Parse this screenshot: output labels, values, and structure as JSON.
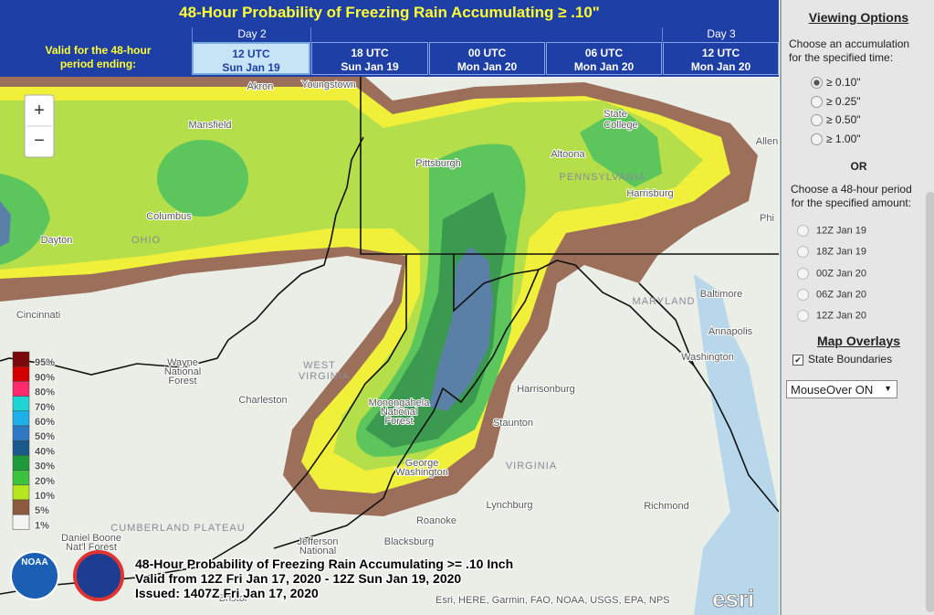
{
  "header": {
    "title": "48-Hour Probability of Freezing Rain Accumulating ≥ .10\"",
    "valid_label": [
      "Valid for the 48-hour",
      "period ending:"
    ],
    "days": [
      "Day 2",
      "Day 3"
    ],
    "tabs": [
      [
        "12 UTC",
        "Sun Jan 19"
      ],
      [
        "18 UTC",
        "Sun Jan 19"
      ],
      [
        "00 UTC",
        "Mon Jan 20"
      ],
      [
        "06 UTC",
        "Mon Jan 20"
      ],
      [
        "12 UTC",
        "Mon Jan 20"
      ]
    ]
  },
  "map": {
    "zoom": [
      "+",
      "−"
    ],
    "labels": [
      "Akron",
      "Youngstown",
      "Mansfield",
      "Pittsburgh",
      "State",
      "College",
      "Altoona",
      "PENNSYLVANIA",
      "Harrisburg",
      "Columbus",
      "Dayton",
      "OHIO",
      "Cincinnati",
      "WEST",
      "VIRGINIA",
      "Charleston",
      "Wayne",
      "National",
      "Forest",
      "MARYLAND",
      "Baltimore",
      "Annapolis",
      "Washington",
      "Harrisonburg",
      "Staunton",
      "VIRGINIA",
      "Lynchburg",
      "Roanoke",
      "Blacksburg",
      "Richmond",
      "CUMBERLAND PLATEAU",
      "Daniel Boone",
      "Nat'l Forest",
      "Jefferson",
      "National",
      "Monongahela",
      "National",
      "Forest",
      "George",
      "Washington",
      "Allen",
      "Phi",
      "Bristol"
    ],
    "legend": [
      {
        "label": "95%",
        "color": "#7a0a0a"
      },
      {
        "label": "90%",
        "color": "#d40000"
      },
      {
        "label": "80%",
        "color": "#ff2a6e"
      },
      {
        "label": "70%",
        "color": "#21d4d4"
      },
      {
        "label": "60%",
        "color": "#1fb0ea"
      },
      {
        "label": "50%",
        "color": "#2f78c4"
      },
      {
        "label": "40%",
        "color": "#1a5a8a"
      },
      {
        "label": "30%",
        "color": "#1f9a3a"
      },
      {
        "label": "20%",
        "color": "#3cc23c"
      },
      {
        "label": "10%",
        "color": "#b6e61e"
      },
      {
        "label": "5%",
        "color": "#8c5a3c"
      },
      {
        "label": "1%",
        "color": "#f4f4f0"
      }
    ],
    "caption": [
      "48-Hour Probability of Freezing Rain Accumulating >= .10 Inch",
      "Valid from 12Z Fri Jan 17, 2020 - 12Z Sun Jan 19, 2020",
      "Issued: 1407Z Fri Jan 17, 2020"
    ],
    "logos": [
      "NOAA"
    ],
    "attribution": "Esri, HERE, Garmin, FAO, NOAA, USGS, EPA, NPS",
    "esri": "esri"
  },
  "sidebar": {
    "title": "Viewing Options",
    "accum_prompt": [
      "Choose an accumulation",
      "for the specified time:"
    ],
    "amounts": [
      "≥ 0.10\"",
      "≥ 0.25\"",
      "≥ 0.50\"",
      "≥ 1.00\""
    ],
    "or": "OR",
    "period_prompt": [
      "Choose a 48-hour period",
      "for the specified amount:"
    ],
    "periods": [
      "12Z Jan 19",
      "18Z Jan 19",
      "00Z Jan 20",
      "06Z Jan 20",
      "12Z Jan 20"
    ],
    "overlays_title": "Map Overlays",
    "overlay": "State Boundaries",
    "select": "MouseOver ON"
  }
}
